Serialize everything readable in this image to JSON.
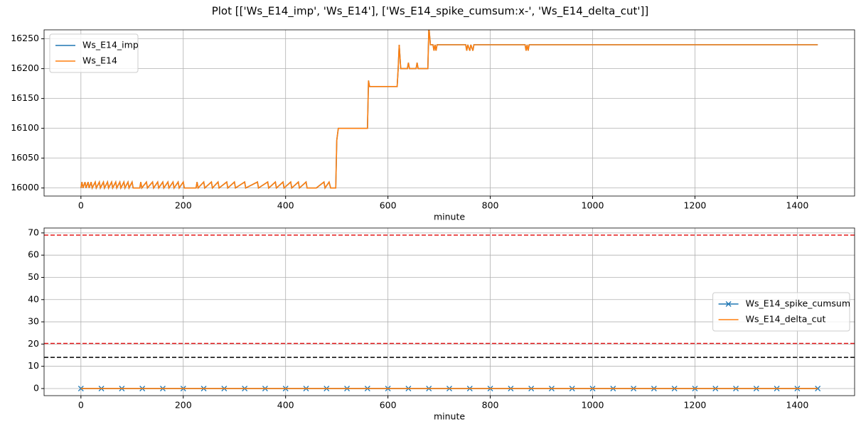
{
  "title": "Plot [['Ws_E14_imp', 'Ws_E14'], ['Ws_E14_spike_cumsum:x-', 'Ws_E14_delta_cut']]",
  "chart_data": [
    {
      "type": "line",
      "xlabel": "minute",
      "xlim": [
        -72,
        1512
      ],
      "ylim": [
        15986.5,
        16265
      ],
      "xticks": [
        0,
        200,
        400,
        600,
        800,
        1000,
        1200,
        1400
      ],
      "yticks": [
        16000,
        16050,
        16100,
        16150,
        16200,
        16250
      ],
      "grid": true,
      "legend": "upper left",
      "x": [
        0,
        2,
        4,
        8,
        10,
        14,
        16,
        20,
        22,
        28,
        30,
        36,
        38,
        44,
        46,
        52,
        54,
        60,
        62,
        68,
        70,
        76,
        78,
        84,
        86,
        92,
        94,
        100,
        102,
        115,
        117,
        119,
        128,
        130,
        140,
        142,
        150,
        152,
        160,
        162,
        170,
        172,
        180,
        182,
        190,
        192,
        200,
        202,
        225,
        227,
        229,
        240,
        242,
        255,
        257,
        268,
        270,
        285,
        287,
        300,
        302,
        320,
        322,
        345,
        347,
        365,
        367,
        380,
        382,
        395,
        397,
        410,
        412,
        425,
        427,
        440,
        442,
        460,
        475,
        477,
        485,
        488,
        498,
        500,
        503,
        560,
        562,
        564,
        618,
        620,
        622,
        625,
        638,
        640,
        642,
        655,
        657,
        659,
        678,
        680,
        683,
        688,
        690,
        692,
        694,
        696,
        752,
        754,
        756,
        760,
        762,
        766,
        768,
        868,
        870,
        872,
        874,
        876,
        1440
      ],
      "series": [
        {
          "name": "Ws_E14_imp",
          "color": "#1f77b4",
          "values": [
            16000,
            16010,
            16000,
            16010,
            16000,
            16010,
            16000,
            16010,
            16000,
            16010,
            16000,
            16010,
            16000,
            16010,
            16000,
            16010,
            16000,
            16010,
            16000,
            16010,
            16000,
            16010,
            16000,
            16010,
            16000,
            16010,
            16000,
            16010,
            16000,
            16000,
            16010,
            16000,
            16010,
            16000,
            16010,
            16000,
            16010,
            16000,
            16010,
            16000,
            16010,
            16000,
            16010,
            16000,
            16010,
            16000,
            16010,
            16000,
            16000,
            16010,
            16000,
            16010,
            16000,
            16010,
            16000,
            16010,
            16000,
            16010,
            16000,
            16010,
            16000,
            16010,
            16000,
            16010,
            16000,
            16010,
            16000,
            16010,
            16000,
            16010,
            16000,
            16010,
            16000,
            16010,
            16000,
            16010,
            16000,
            16000,
            16010,
            16000,
            16010,
            16000,
            16000,
            16080,
            16100,
            16100,
            16180,
            16170,
            16170,
            16200,
            16240,
            16200,
            16200,
            16210,
            16200,
            16200,
            16210,
            16200,
            16200,
            16270,
            16240,
            16240,
            16230,
            16240,
            16230,
            16240,
            16240,
            16230,
            16240,
            16230,
            16240,
            16230,
            16240,
            16240,
            16230,
            16240,
            16230,
            16240,
            16240
          ]
        },
        {
          "name": "Ws_E14",
          "color": "#ff7f0e",
          "values": [
            16000,
            16010,
            16000,
            16010,
            16000,
            16010,
            16000,
            16010,
            16000,
            16010,
            16000,
            16010,
            16000,
            16010,
            16000,
            16010,
            16000,
            16010,
            16000,
            16010,
            16000,
            16010,
            16000,
            16010,
            16000,
            16010,
            16000,
            16010,
            16000,
            16000,
            16010,
            16000,
            16010,
            16000,
            16010,
            16000,
            16010,
            16000,
            16010,
            16000,
            16010,
            16000,
            16010,
            16000,
            16010,
            16000,
            16010,
            16000,
            16000,
            16010,
            16000,
            16010,
            16000,
            16010,
            16000,
            16010,
            16000,
            16010,
            16000,
            16010,
            16000,
            16010,
            16000,
            16010,
            16000,
            16010,
            16000,
            16010,
            16000,
            16010,
            16000,
            16010,
            16000,
            16010,
            16000,
            16010,
            16000,
            16000,
            16010,
            16000,
            16010,
            16000,
            16000,
            16080,
            16100,
            16100,
            16180,
            16170,
            16170,
            16200,
            16240,
            16200,
            16200,
            16210,
            16200,
            16200,
            16210,
            16200,
            16200,
            16270,
            16240,
            16240,
            16230,
            16240,
            16230,
            16240,
            16240,
            16230,
            16240,
            16230,
            16240,
            16230,
            16240,
            16240,
            16230,
            16240,
            16230,
            16240,
            16240
          ]
        }
      ]
    },
    {
      "type": "line",
      "xlabel": "minute",
      "xlim": [
        -72,
        1512
      ],
      "ylim": [
        -3.2,
        72.2
      ],
      "xticks": [
        0,
        200,
        400,
        600,
        800,
        1000,
        1200,
        1400
      ],
      "yticks": [
        0,
        10,
        20,
        30,
        40,
        50,
        60,
        70
      ],
      "grid": true,
      "legend": "center right",
      "x": [
        0,
        40,
        80,
        120,
        160,
        200,
        240,
        280,
        320,
        360,
        400,
        440,
        480,
        520,
        560,
        600,
        640,
        680,
        720,
        760,
        800,
        840,
        880,
        920,
        960,
        1000,
        1040,
        1080,
        1120,
        1160,
        1200,
        1240,
        1280,
        1320,
        1360,
        1400,
        1440
      ],
      "series": [
        {
          "name": "Ws_E14_spike_cumsum",
          "color": "#1f77b4",
          "marker": "x",
          "values": [
            0,
            0,
            0,
            0,
            0,
            0,
            0,
            0,
            0,
            0,
            0,
            0,
            0,
            0,
            0,
            0,
            0,
            0,
            0,
            0,
            0,
            0,
            0,
            0,
            0,
            0,
            0,
            0,
            0,
            0,
            0,
            0,
            0,
            0,
            0,
            0,
            0
          ]
        },
        {
          "name": "Ws_E14_delta_cut",
          "color": "#ff7f0e",
          "values": [
            0,
            0,
            0,
            0,
            0,
            0,
            0,
            0,
            0,
            0,
            0,
            0,
            0,
            0,
            0,
            0,
            0,
            0,
            0,
            0,
            0,
            0,
            0,
            0,
            0,
            0,
            0,
            0,
            0,
            0,
            0,
            0,
            0,
            0,
            0,
            0,
            0
          ]
        }
      ],
      "hlines": [
        {
          "y": 69,
          "color": "#e41a1c"
        },
        {
          "y": 20.3,
          "color": "#e41a1c"
        },
        {
          "y": 14,
          "color": "#000000"
        }
      ]
    }
  ]
}
